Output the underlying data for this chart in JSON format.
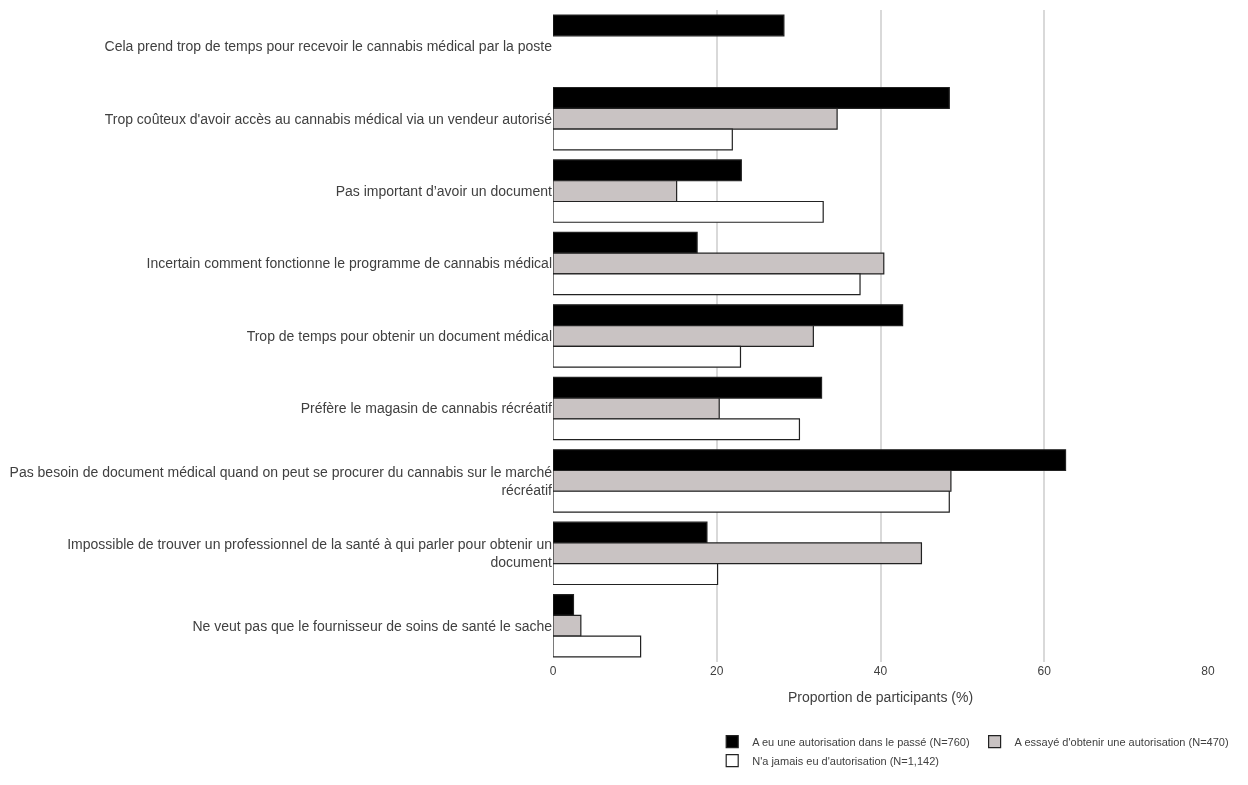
{
  "chart_data": {
    "type": "bar",
    "orientation": "horizontal",
    "xlabel": "Proportion de participants (%)",
    "categories": [
      "Cela prend trop de temps pour recevoir le cannabis médical par la poste",
      "Trop coûteux d'avoir accès au cannabis médical via un vendeur autorisé",
      "Pas important d’avoir un document",
      "Incertain comment fonctionne le programme de cannabis médical",
      "Trop de temps pour obtenir un document médical",
      "Préfère le magasin de cannabis récréatif",
      "Pas besoin de document médical quand on peut se procurer du cannabis sur le marché récréatif",
      "Impossible de trouver un professionnel de la santé à qui parler pour obtenir un document",
      "Ne veut pas que le fournisseur de soins de santé le sache"
    ],
    "series": [
      {
        "name": "A eu une autorisation dans le passé (N=760)",
        "color": "#000000",
        "values": [
          28.2,
          48.4,
          23.0,
          17.6,
          42.7,
          32.8,
          62.6,
          18.8,
          2.5
        ]
      },
      {
        "name": "A essayé d'obtenir une autorisation (N=470)",
        "color": "#c9c3c3",
        "values": [
          null,
          34.7,
          15.1,
          40.4,
          31.8,
          20.3,
          48.6,
          45.0,
          3.4
        ]
      },
      {
        "name": "N'a jamais eu d'autorisation (N=1,142)",
        "color": "#ffffff",
        "values": [
          null,
          21.9,
          33.0,
          37.5,
          22.9,
          30.1,
          48.4,
          20.1,
          10.7
        ]
      }
    ],
    "xlim": [
      0,
      80
    ],
    "xticks": [
      0,
      20,
      40,
      60,
      80
    ],
    "grid": "x",
    "legend": "bottom"
  }
}
